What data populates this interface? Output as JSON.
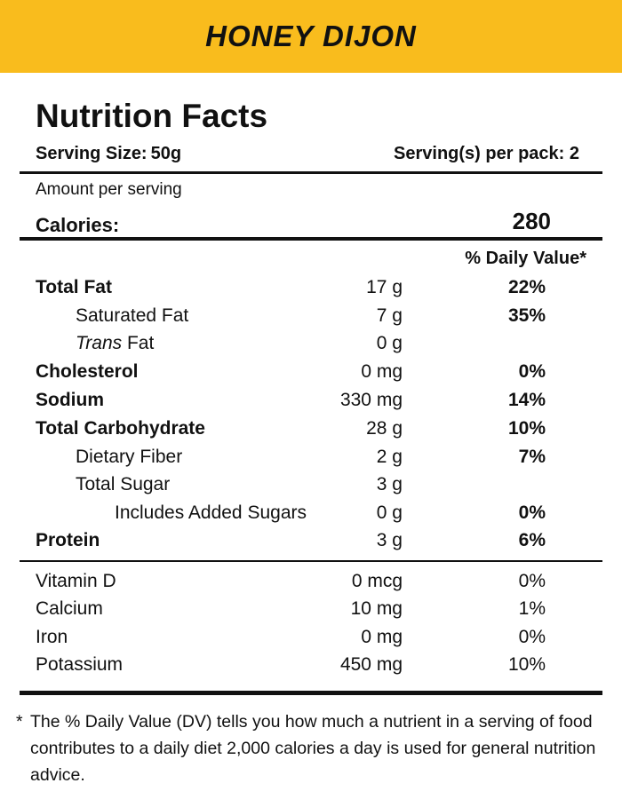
{
  "colors": {
    "banner": "#F9BC1D",
    "text": "#111111",
    "background": "#FFFFFF"
  },
  "banner": {
    "title": "HONEY DIJON"
  },
  "label": {
    "title": "Nutrition Facts",
    "serving_size_label": "Serving Size:",
    "serving_size_value": "50g",
    "servings_per_pack": "Serving(s) per pack: 2",
    "amount_per_serving": "Amount per serving",
    "calories_label": "Calories:",
    "calories_value": "280",
    "dv_header": "% Daily Value*"
  },
  "nutrients": [
    {
      "name": "Total Fat",
      "amount": "17 g",
      "dv": "22%",
      "bold": true,
      "indent": 0
    },
    {
      "name": "Saturated Fat",
      "amount": "7 g",
      "dv": "35%",
      "bold": false,
      "indent": 1
    },
    {
      "name_italic": "Trans",
      "name_rest": " Fat",
      "amount": "0 g",
      "dv": "",
      "bold": false,
      "indent": 1
    },
    {
      "name": "Cholesterol",
      "amount": "0 mg",
      "dv": "0%",
      "bold": true,
      "indent": 0
    },
    {
      "name": "Sodium",
      "amount": "330 mg",
      "dv": "14%",
      "bold": true,
      "indent": 0
    },
    {
      "name": "Total Carbohydrate",
      "amount": "28 g",
      "dv": "10%",
      "bold": true,
      "indent": 0
    },
    {
      "name": "Dietary Fiber",
      "amount": "2 g",
      "dv": "7%",
      "bold": false,
      "indent": 1
    },
    {
      "name": "Total Sugar",
      "amount": "3 g",
      "dv": "",
      "bold": false,
      "indent": 1
    },
    {
      "name": "Includes Added Sugars",
      "amount": "0 g",
      "dv": "0%",
      "bold": false,
      "indent": 2
    },
    {
      "name": "Protein",
      "amount": "3 g",
      "dv": "6%",
      "bold": true,
      "indent": 0
    }
  ],
  "vitamins": [
    {
      "name": "Vitamin D",
      "amount": "0 mcg",
      "dv": "0%"
    },
    {
      "name": "Calcium",
      "amount": "10 mg",
      "dv": "1%"
    },
    {
      "name": "Iron",
      "amount": "0 mg",
      "dv": "0%"
    },
    {
      "name": "Potassium",
      "amount": "450 mg",
      "dv": "10%"
    }
  ],
  "footnote": {
    "marker": "*",
    "text": "The % Daily Value (DV) tells you how much a nutrient in a serving of food contributes to a daily diet 2,000 calories a day is used for general nutrition advice."
  }
}
